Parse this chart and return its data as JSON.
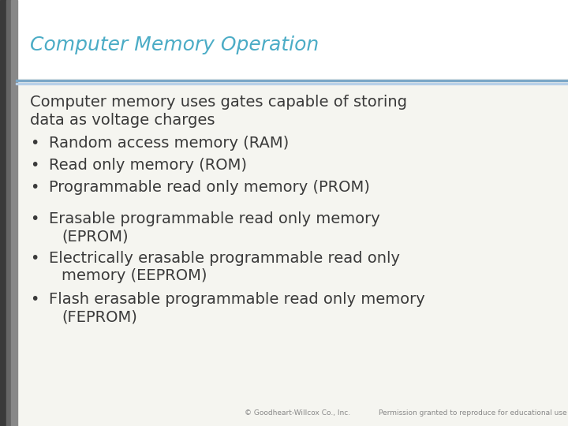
{
  "title": "Computer Memory Operation",
  "title_color": "#4BACC6",
  "title_fontsize": 18,
  "bg_color": "#F5F5F0",
  "left_bar_dark": "#555555",
  "left_bar_mid": "#777777",
  "left_bar_light": "#999999",
  "separator_color": "#7BA7C7",
  "separator_color2": "#B8D0E8",
  "body_text_color": "#3A3A3A",
  "intro_text_line1": "Computer memory uses gates capable of storing",
  "intro_text_line2": "data as voltage charges",
  "bullets": [
    "Random access memory (RAM)",
    "Read only memory (ROM)",
    "Programmable read only memory (PROM)",
    "Erasable programmable read only memory\n    (EPROM)",
    "Electrically erasable programmable read only\n    memory (EEPROM)",
    "Flash erasable programmable read only memory\n    (FEPROM)"
  ],
  "footer_left": "© Goodheart-Willcox Co., Inc.",
  "footer_right": "Permission granted to reproduce for educational use only.",
  "footer_color": "#888888",
  "footer_fontsize": 6.5,
  "body_fontsize": 14,
  "bullet_fontsize": 14
}
